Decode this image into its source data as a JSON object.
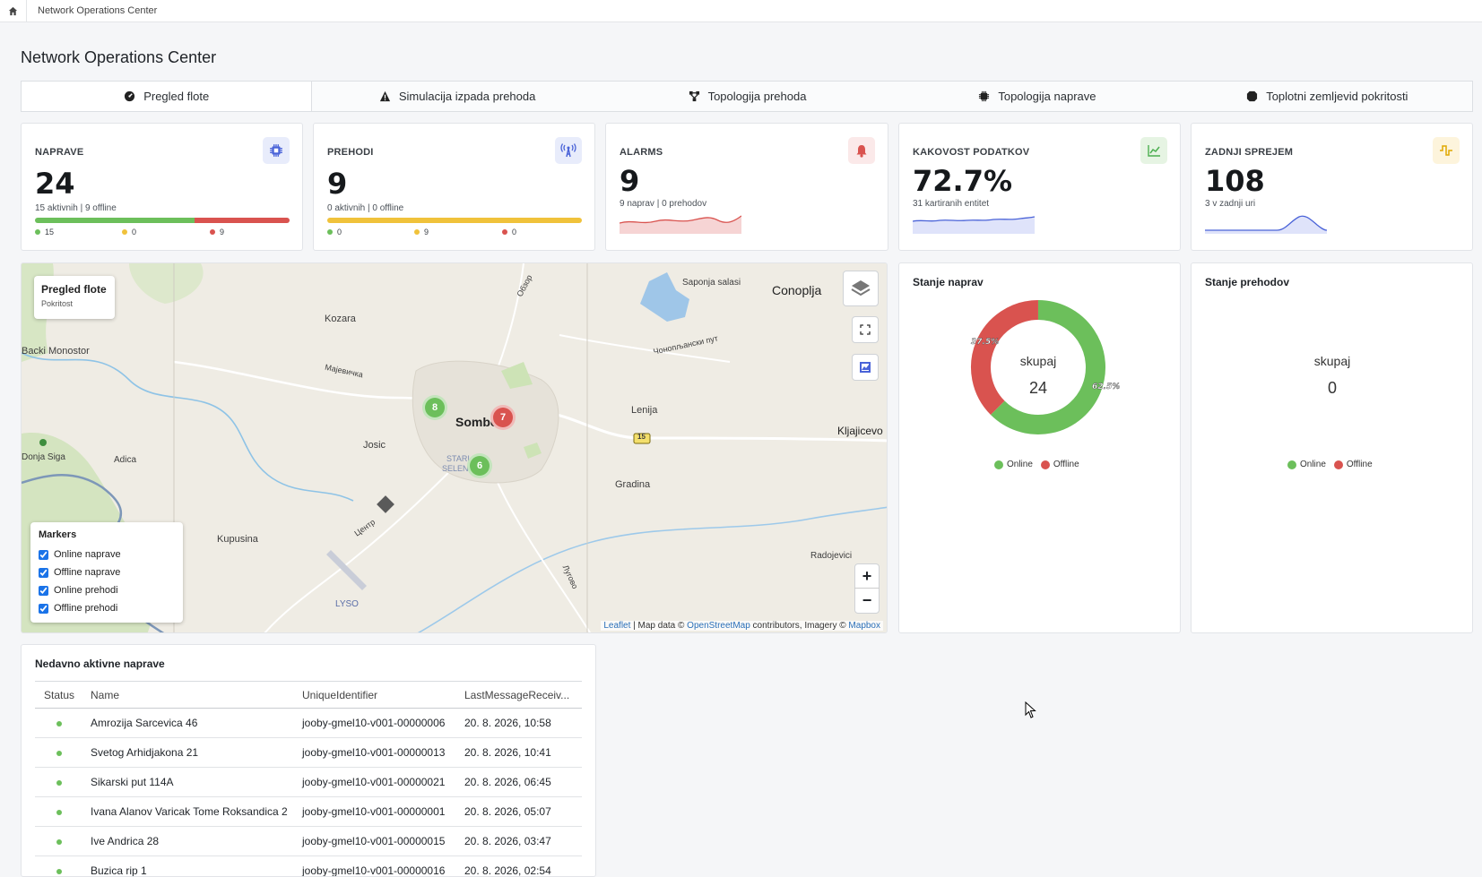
{
  "breadcrumb": {
    "home_icon": "home-icon",
    "label": "Network Operations Center"
  },
  "page": {
    "title": "Network Operations Center"
  },
  "tabs": [
    {
      "label": "Pregled flote",
      "icon": "gauge-icon",
      "active": true
    },
    {
      "label": "Simulacija izpada prehoda",
      "icon": "warning-icon",
      "active": false
    },
    {
      "label": "Topologija prehoda",
      "icon": "topology-icon",
      "active": false
    },
    {
      "label": "Topologija naprave",
      "icon": "chip-icon",
      "active": false
    },
    {
      "label": "Toplotni zemljevid pokritosti",
      "icon": "heatmap-icon",
      "active": false
    }
  ],
  "stats": {
    "devices": {
      "label": "NAPRAVE",
      "value": "24",
      "sub": "15 aktivnih | 9 offline",
      "online": "15",
      "warn": "0",
      "offline": "9",
      "online_count": 15,
      "offline_count": 9,
      "icon": "chip-icon"
    },
    "gateways": {
      "label": "PREHODI",
      "value": "9",
      "sub": "0 aktivnih | 0 offline",
      "online": "0",
      "warn": "9",
      "offline": "0",
      "icon": "antenna-icon"
    },
    "alarms": {
      "label": "ALARMS",
      "value": "9",
      "sub": "9 naprav | 0 prehodov",
      "icon": "bell-icon"
    },
    "quality": {
      "label": "KAKOVOST PODATKOV",
      "value": "72.7%",
      "sub": "31 kartiranih entitet",
      "icon": "chart-line-icon"
    },
    "last": {
      "label": "ZADNJI SPREJEM",
      "value": "108",
      "sub": "3 v zadnji uri",
      "icon": "pulse-icon"
    }
  },
  "colors": {
    "online": "#6cbf5b",
    "warn": "#f0c23b",
    "offline": "#d9534f",
    "accent": "#4a63d8"
  },
  "map": {
    "info_title": "Pregled flote",
    "info_sub": "Pokritost",
    "labels": {
      "kozara": "Kozara",
      "backi": "Backi Monostor",
      "majevica": "Мајевичка",
      "obzor": "Обзор",
      "saponja": "Saponja salasi",
      "conoplja": "Conoplja",
      "conoplja_road": "Чонопљански пут",
      "sombor": "Sombor",
      "lenija": "Lenija",
      "josic": "Josic",
      "stari": "STARI",
      "seleni": "SELENČA",
      "kljajicevo": "Kljajicevo",
      "donja_siga": "Donja Siga",
      "adica": "Adica",
      "gradina": "Gradina",
      "kupusina": "Kupusina",
      "centr": "Центр",
      "lugovo": "Лугово",
      "radojevici": "Radojevici",
      "lyso": "LYSO",
      "route": "15"
    },
    "clusters": [
      {
        "count": "8",
        "status": "online"
      },
      {
        "count": "7",
        "status": "offline"
      },
      {
        "count": "6",
        "status": "online"
      }
    ],
    "markers_panel": {
      "title": "Markers",
      "items": [
        "Online naprave",
        "Offline naprave",
        "Online prehodi",
        "Offline prehodi"
      ]
    },
    "zoom_in": "+",
    "zoom_out": "−",
    "attribution": {
      "leaflet": "Leaflet",
      "mid": " | Map data © ",
      "osm": "OpenStreetMap",
      "mid2": " contributors, Imagery © ",
      "mapbox": "Mapbox"
    }
  },
  "device_state": {
    "title": "Stanje naprav",
    "center_label": "skupaj",
    "center_value": "24",
    "online_pct_label": "62.5%",
    "offline_pct_label": "37.5%",
    "online_pct": 62.5,
    "offline_pct": 37.5,
    "legend_online": "Online",
    "legend_offline": "Offline"
  },
  "gateway_state": {
    "title": "Stanje prehodov",
    "center_label": "skupaj",
    "center_value": "0",
    "legend_online": "Online",
    "legend_offline": "Offline"
  },
  "recent": {
    "title": "Nedavno aktivne naprave",
    "columns": [
      "Status",
      "Name",
      "UniqueIdentifier",
      "LastMessageReceiv..."
    ],
    "rows": [
      {
        "name": "Amrozija Sarcevica 46",
        "uid": "jooby-gmel10-v001-00000006",
        "last": "20. 8. 2026, 10:58"
      },
      {
        "name": "Svetog Arhidjakona 21",
        "uid": "jooby-gmel10-v001-00000013",
        "last": "20. 8. 2026, 10:41"
      },
      {
        "name": "Sikarski put 114A",
        "uid": "jooby-gmel10-v001-00000021",
        "last": "20. 8. 2026, 06:45"
      },
      {
        "name": "Ivana Alanov Varicak Tome Roksandica 2",
        "uid": "jooby-gmel10-v001-00000001",
        "last": "20. 8. 2026, 05:07"
      },
      {
        "name": "Ive Andrica 28",
        "uid": "jooby-gmel10-v001-00000015",
        "last": "20. 8. 2026, 03:47"
      },
      {
        "name": "Buzica rip 1",
        "uid": "jooby-gmel10-v001-00000016",
        "last": "20. 8. 2026, 02:54"
      }
    ]
  }
}
